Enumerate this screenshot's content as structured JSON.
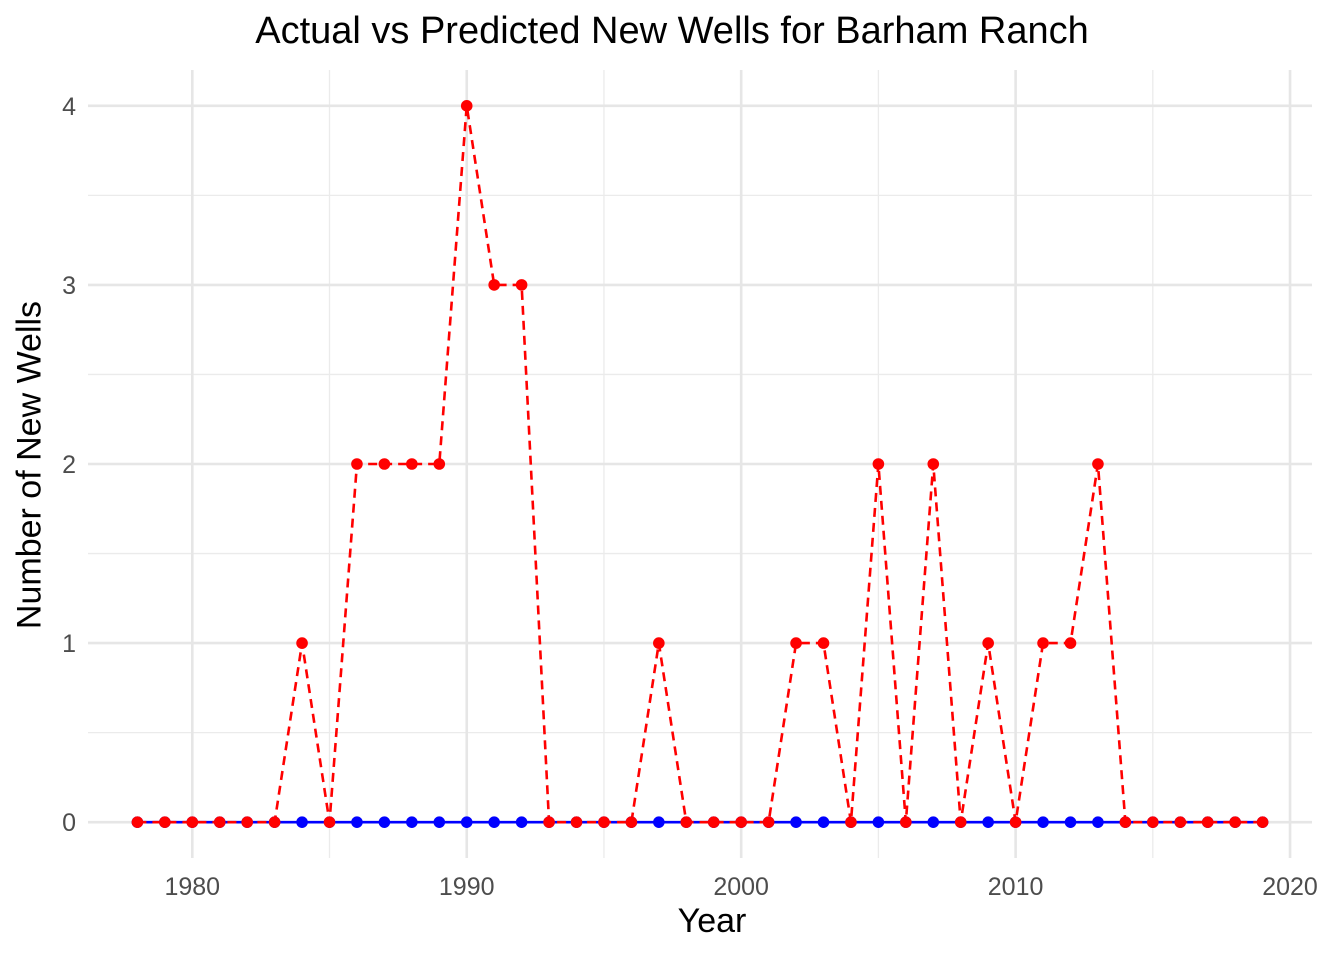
{
  "chart_data": {
    "type": "line",
    "title": "Actual vs Predicted New Wells for Barham Ranch",
    "xlabel": "Year",
    "ylabel": "Number of New Wells",
    "xlim": [
      1976.2,
      2020.8
    ],
    "ylim": [
      -0.2,
      4.2
    ],
    "x_ticks": [
      1980,
      1990,
      2000,
      2010,
      2020
    ],
    "y_ticks": [
      0,
      1,
      2,
      3,
      4
    ],
    "grid": true,
    "legend": "none",
    "x": [
      1978,
      1979,
      1980,
      1981,
      1982,
      1983,
      1984,
      1985,
      1986,
      1987,
      1988,
      1989,
      1990,
      1991,
      1992,
      1993,
      1994,
      1995,
      1996,
      1997,
      1998,
      1999,
      2000,
      2001,
      2002,
      2003,
      2004,
      2005,
      2006,
      2007,
      2008,
      2009,
      2010,
      2011,
      2012,
      2013,
      2014,
      2015,
      2016,
      2017,
      2018,
      2019
    ],
    "series": [
      {
        "color": "#0000ff",
        "line_style": "solid",
        "values": [
          0,
          0,
          0,
          0,
          0,
          0,
          0,
          0,
          0,
          0,
          0,
          0,
          0,
          0,
          0,
          0,
          0,
          0,
          0,
          0,
          0,
          0,
          0,
          0,
          0,
          0,
          0,
          0,
          0,
          0,
          0,
          0,
          0,
          0,
          0,
          0,
          0,
          0,
          0,
          0,
          0,
          0
        ]
      },
      {
        "color": "#ff0000",
        "line_style": "dashed",
        "values": [
          0,
          0,
          0,
          0,
          0,
          0,
          1,
          0,
          2,
          2,
          2,
          2,
          4,
          3,
          3,
          0,
          0,
          0,
          0,
          1,
          0,
          0,
          0,
          0,
          1,
          1,
          0,
          2,
          0,
          2,
          0,
          1,
          0,
          1,
          1,
          2,
          0,
          0,
          0,
          0,
          0,
          0
        ]
      }
    ]
  }
}
